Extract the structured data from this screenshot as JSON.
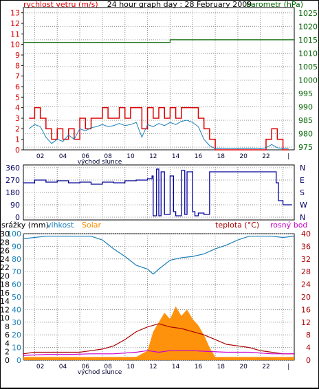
{
  "title": "24 hour graph day : 28 February 2009",
  "x_ticks": [
    "02",
    "04",
    "06",
    "08",
    "10",
    "12",
    "14",
    "16",
    "18",
    "20",
    "22",
    "|"
  ],
  "sunrise_label": "východ slunce",
  "colors": {
    "wind": "#dd0000",
    "gust": "#dd0000",
    "avg_wind": "#1a7fb8",
    "pressure": "#006400",
    "direction": "#000099",
    "humidity": "#1a7fb8",
    "temp": "#aa0000",
    "dewpoint": "#cc00cc",
    "solar": "#ff8c00",
    "grid": "#8c8c8c"
  },
  "chart_data": [
    {
      "type": "line",
      "panel": "wind_pressure",
      "left_axis_label": "rychlost vetru (m/s)",
      "right_axis_label": "barometr (hPa)",
      "left_ticks": [
        "0",
        "1",
        "2",
        "3",
        "4",
        "5",
        "6",
        "7",
        "8",
        "9",
        "10",
        "11",
        "12",
        "13"
      ],
      "right_ticks": [
        "975",
        "980",
        "985",
        "990",
        "995",
        "1000",
        "1005",
        "1010",
        "1015",
        "1020",
        "1025"
      ],
      "ylim_left": [
        0,
        13.5
      ],
      "ylim_right": [
        974,
        1027
      ],
      "series": [
        {
          "name": "wind_max",
          "axis": "left",
          "x": [
            0.5,
            1,
            1.5,
            2,
            2.5,
            3,
            3.5,
            4,
            4.5,
            5,
            5.5,
            6,
            6.5,
            7,
            7.5,
            8,
            8.5,
            9,
            9.5,
            10,
            10.5,
            11,
            11.5,
            12,
            12.5,
            13,
            13.5,
            14,
            14.5,
            15,
            15.5,
            16,
            16.5,
            17,
            17.5,
            18,
            20,
            21,
            21.5,
            22,
            22.5,
            23,
            23.5
          ],
          "y": [
            3,
            4,
            3,
            2,
            1,
            2,
            1,
            2,
            1,
            3,
            2,
            3,
            3,
            4,
            3,
            3,
            4,
            3,
            4,
            4,
            2,
            4,
            3,
            4,
            3,
            4,
            3,
            4,
            4,
            4,
            3,
            2,
            1,
            0,
            0,
            0,
            0,
            0,
            1,
            2,
            1,
            0,
            0
          ]
        },
        {
          "name": "wind_avg",
          "axis": "left",
          "x": [
            0.5,
            1,
            1.5,
            2,
            2.5,
            3,
            3.5,
            4,
            4.5,
            5,
            5.5,
            6,
            6.5,
            7,
            7.5,
            8,
            8.5,
            9,
            9.5,
            10,
            10.5,
            11,
            11.5,
            12,
            12.5,
            13,
            13.5,
            14,
            14.5,
            15,
            15.5,
            16,
            16.5,
            17,
            17.5,
            18,
            20,
            21,
            21.5,
            22,
            22.5,
            23,
            23.5
          ],
          "y": [
            2,
            2.4,
            2.2,
            1.2,
            0.6,
            1,
            0.8,
            1.4,
            1,
            2,
            1.8,
            2.1,
            2.2,
            2.4,
            2.2,
            2.3,
            2.5,
            2.3,
            2.4,
            2.6,
            1.2,
            2.4,
            2.2,
            2.5,
            2.3,
            2.6,
            2.4,
            2.7,
            2.8,
            2.6,
            2.2,
            1,
            0.4,
            0.1,
            0.1,
            0.1,
            0.1,
            0.1,
            0.2,
            0.5,
            0.2,
            0.1,
            0.1
          ]
        },
        {
          "name": "pressure",
          "axis": "right",
          "x": [
            0,
            1,
            2,
            3,
            4,
            5,
            6,
            7,
            8,
            9,
            10,
            11,
            12,
            13,
            14,
            15,
            16,
            17,
            18,
            19,
            20,
            21,
            22,
            23,
            24
          ],
          "y": [
            1014,
            1014,
            1014,
            1014,
            1014,
            1014,
            1014,
            1014,
            1014,
            1014,
            1014,
            1014,
            1014,
            1015,
            1015,
            1015,
            1015,
            1015,
            1015,
            1015,
            1015,
            1015,
            1015,
            1015,
            1015
          ]
        }
      ]
    },
    {
      "type": "line",
      "panel": "wind_direction",
      "left_ticks": [
        "0",
        "90",
        "180",
        "270",
        "360"
      ],
      "right_ticks": [
        "N",
        "W",
        "S",
        "E",
        "N"
      ],
      "ylim": [
        0,
        360
      ],
      "series": [
        {
          "name": "direction",
          "x": [
            0,
            1,
            2,
            3,
            4,
            5,
            6,
            7,
            8,
            9,
            10,
            11,
            11.4,
            11.5,
            11.8,
            12,
            12.2,
            12.5,
            13,
            13.3,
            13.5,
            14,
            14.3,
            14.5,
            15,
            15.2,
            15.5,
            16,
            16.5,
            17,
            18,
            19,
            20,
            21,
            22,
            22.4,
            22.6,
            23,
            23.8
          ],
          "y": [
            250,
            270,
            255,
            265,
            250,
            255,
            240,
            255,
            250,
            265,
            270,
            280,
            300,
            10,
            350,
            10,
            330,
            20,
            300,
            40,
            10,
            340,
            20,
            330,
            40,
            10,
            30,
            20,
            330,
            330,
            330,
            330,
            330,
            330,
            330,
            250,
            120,
            90,
            90
          ]
        }
      ]
    },
    {
      "type": "line",
      "panel": "temp_humidity",
      "legend": [
        "srážky (mm)",
        "vlhkost",
        "Solar",
        "teplota (°C)",
        "rosný bod"
      ],
      "left_ticks_srazky": [
        "0",
        "2",
        "4",
        "6",
        "8",
        "10",
        "12",
        "14",
        "16",
        "18",
        "20",
        "22",
        "24",
        "26",
        "28",
        "30"
      ],
      "left_ticks_humidity": [
        "0",
        "10",
        "20",
        "30",
        "40",
        "50",
        "60",
        "70",
        "80",
        "90",
        "100"
      ],
      "right_ticks": [
        "0",
        "4",
        "8",
        "12",
        "16",
        "20",
        "24",
        "28",
        "32",
        "36",
        "40"
      ],
      "ylim_humidity": [
        0,
        100
      ],
      "ylim_temp": [
        0,
        40
      ],
      "series": [
        {
          "name": "humidity",
          "x": [
            0,
            1,
            2,
            3,
            4,
            5,
            6,
            7,
            8,
            9,
            10,
            11,
            11.5,
            12,
            13,
            14,
            15,
            16,
            17,
            18,
            19,
            20,
            21,
            22,
            23,
            24
          ],
          "y": [
            96,
            97,
            98,
            98,
            98,
            98,
            98,
            95,
            88,
            82,
            75,
            72,
            68,
            72,
            79,
            81,
            82,
            84,
            88,
            91,
            95,
            98,
            98,
            98,
            97,
            98
          ]
        },
        {
          "name": "temp",
          "x": [
            0,
            1,
            2,
            3,
            4,
            5,
            6,
            7,
            8,
            9,
            10,
            11,
            12,
            13,
            14,
            15,
            16,
            17,
            18,
            19,
            20,
            21,
            22,
            23,
            24
          ],
          "y": [
            2,
            2.5,
            2.5,
            2.5,
            2.5,
            2.5,
            3,
            3.5,
            4.5,
            6.5,
            9,
            10.5,
            11.5,
            10.5,
            10,
            9,
            8,
            6.5,
            5,
            4.5,
            4,
            3,
            2.5,
            2,
            2
          ]
        },
        {
          "name": "dewpoint",
          "x": [
            0,
            2,
            4,
            6,
            8,
            10,
            11,
            12,
            13,
            14,
            15,
            16,
            18,
            20,
            22,
            24
          ],
          "y": [
            1.5,
            1.8,
            1.8,
            2,
            2,
            2.5,
            3,
            2.5,
            3,
            3,
            3,
            2.8,
            2.5,
            2.5,
            2,
            2
          ]
        },
        {
          "name": "solar",
          "x": [
            0,
            2,
            4,
            6,
            8,
            10,
            11,
            11.5,
            12,
            12.5,
            13,
            13.5,
            14,
            14.5,
            15,
            15.5,
            16,
            16.5,
            17,
            18,
            20,
            22,
            24
          ],
          "y": [
            1,
            1,
            1,
            1,
            1,
            1,
            3,
            9,
            12,
            15,
            13,
            17,
            14,
            16,
            13,
            11,
            8,
            4,
            1,
            1,
            1,
            1,
            1
          ]
        }
      ]
    }
  ]
}
